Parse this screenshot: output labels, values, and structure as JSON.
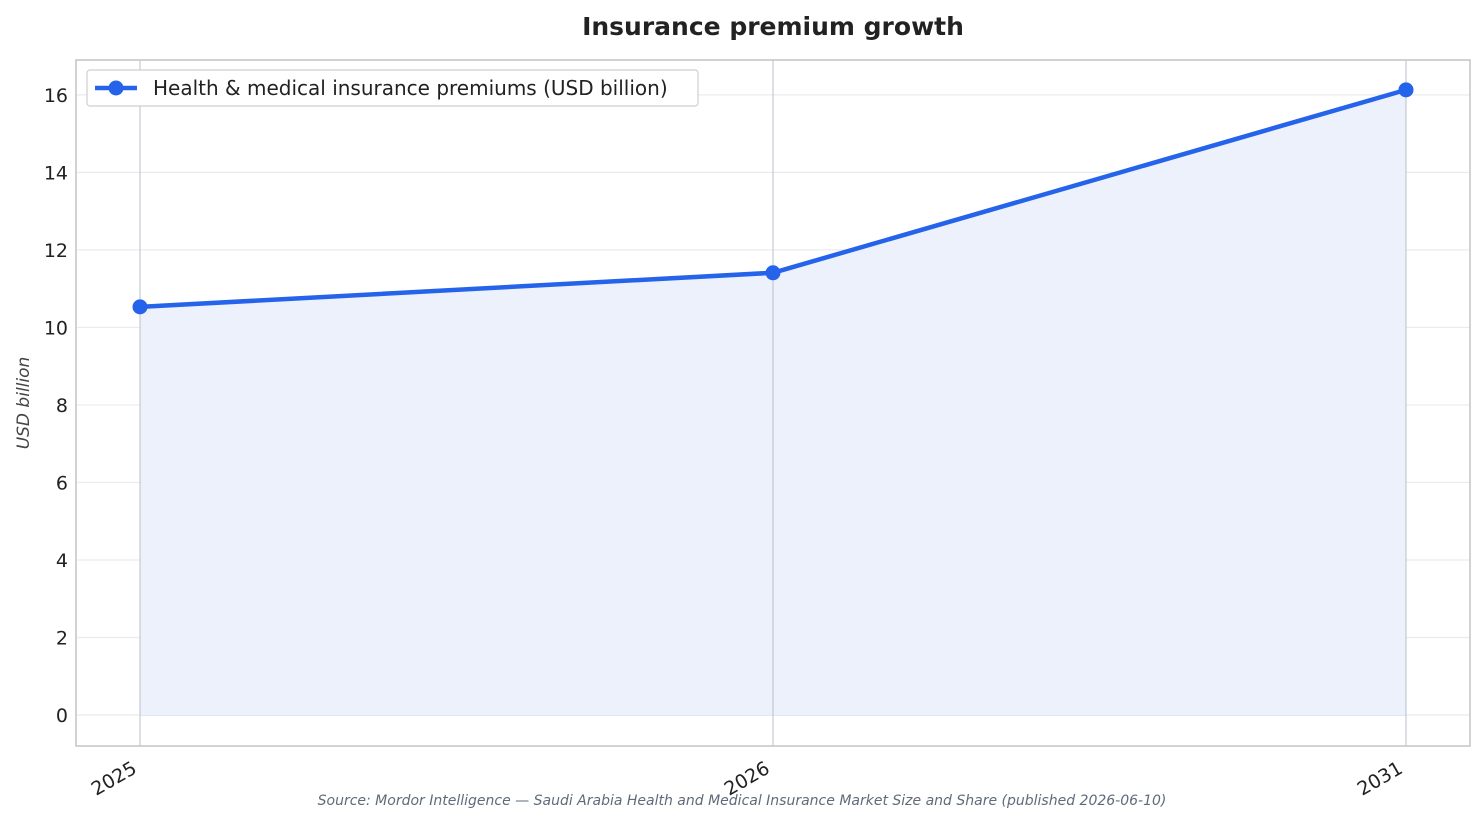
{
  "chart_data": {
    "type": "area",
    "title": "Insurance premium growth",
    "xlabel": "",
    "ylabel": "USD billion",
    "categories": [
      "2025",
      "2026",
      "2031"
    ],
    "series": [
      {
        "name": "Health & medical insurance premiums (USD billion)",
        "values": [
          10.53,
          11.41,
          16.13
        ],
        "color": "#2563eb",
        "fill_color": "#ecf1fc"
      }
    ],
    "ylim": [
      -0.8,
      16.9
    ],
    "yticks": [
      0,
      2,
      4,
      6,
      8,
      10,
      12,
      14,
      16
    ],
    "grid": true,
    "legend_position": "top-left",
    "source": "Source: Mordor Intelligence — Saudi Arabia Health and Medical Insurance Market Size and Share (published 2026-06-10)"
  }
}
